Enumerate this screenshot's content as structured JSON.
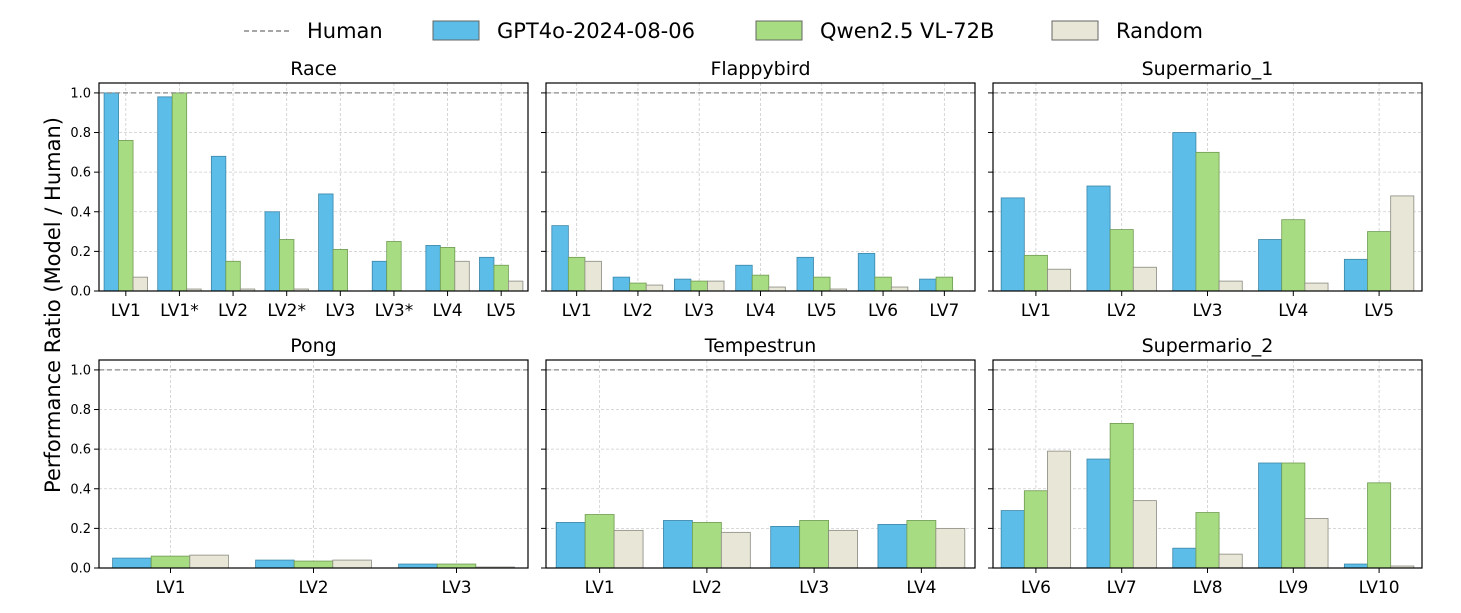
{
  "legend": [
    {
      "name": "Human",
      "kind": "line",
      "color": "#888888"
    },
    {
      "name": "GPT4o-2024-08-06",
      "kind": "bar",
      "color": "#5bbde8"
    },
    {
      "name": "Qwen2.5 VL-72B",
      "kind": "bar",
      "color": "#a8dc82"
    },
    {
      "name": "Random",
      "kind": "bar",
      "color": "#e8e6d6"
    }
  ],
  "ylabel": "Performance Ratio (Model / Human)",
  "chart_data": [
    {
      "type": "bar",
      "title": "Race",
      "categories": [
        "LV1",
        "LV1*",
        "LV2",
        "LV2*",
        "LV3",
        "LV3*",
        "LV4",
        "LV5"
      ],
      "series": [
        {
          "name": "GPT4o-2024-08-06",
          "values": [
            1.0,
            0.98,
            0.68,
            0.4,
            0.49,
            0.15,
            0.23,
            0.17
          ]
        },
        {
          "name": "Qwen2.5 VL-72B",
          "values": [
            0.76,
            1.0,
            0.15,
            0.26,
            0.21,
            0.25,
            0.22,
            0.13
          ]
        },
        {
          "name": "Random",
          "values": [
            0.07,
            0.01,
            0.01,
            0.01,
            0.0,
            0.0,
            0.15,
            0.05
          ]
        }
      ],
      "human_ratio": 1.0,
      "ylim": [
        0,
        1.05
      ],
      "yticks": [
        "0.0",
        "0.2",
        "0.4",
        "0.6",
        "0.8",
        "1.0"
      ],
      "show_yticks": true,
      "grid": true
    },
    {
      "type": "bar",
      "title": "Flappybird",
      "categories": [
        "LV1",
        "LV2",
        "LV3",
        "LV4",
        "LV5",
        "LV6",
        "LV7"
      ],
      "series": [
        {
          "name": "GPT4o-2024-08-06",
          "values": [
            0.33,
            0.07,
            0.06,
            0.13,
            0.17,
            0.19,
            0.06
          ]
        },
        {
          "name": "Qwen2.5 VL-72B",
          "values": [
            0.17,
            0.04,
            0.05,
            0.08,
            0.07,
            0.07,
            0.07
          ]
        },
        {
          "name": "Random",
          "values": [
            0.15,
            0.03,
            0.05,
            0.02,
            0.01,
            0.02,
            0.0
          ]
        }
      ],
      "human_ratio": 1.0,
      "ylim": [
        0,
        1.05
      ],
      "yticks": [
        "0.0",
        "0.2",
        "0.4",
        "0.6",
        "0.8",
        "1.0"
      ],
      "show_yticks": false,
      "grid": true
    },
    {
      "type": "bar",
      "title": "Supermario_1",
      "categories": [
        "LV1",
        "LV2",
        "LV3",
        "LV4",
        "LV5"
      ],
      "series": [
        {
          "name": "GPT4o-2024-08-06",
          "values": [
            0.47,
            0.53,
            0.8,
            0.26,
            0.16
          ]
        },
        {
          "name": "Qwen2.5 VL-72B",
          "values": [
            0.18,
            0.31,
            0.7,
            0.36,
            0.3
          ]
        },
        {
          "name": "Random",
          "values": [
            0.11,
            0.12,
            0.05,
            0.04,
            0.48
          ]
        }
      ],
      "human_ratio": 1.0,
      "ylim": [
        0,
        1.05
      ],
      "yticks": [
        "0.0",
        "0.2",
        "0.4",
        "0.6",
        "0.8",
        "1.0"
      ],
      "show_yticks": false,
      "grid": true
    },
    {
      "type": "bar",
      "title": "Pong",
      "categories": [
        "LV1",
        "LV2",
        "LV3"
      ],
      "series": [
        {
          "name": "GPT4o-2024-08-06",
          "values": [
            0.05,
            0.04,
            0.02
          ]
        },
        {
          "name": "Qwen2.5 VL-72B",
          "values": [
            0.06,
            0.035,
            0.02
          ]
        },
        {
          "name": "Random",
          "values": [
            0.065,
            0.04,
            0.005
          ]
        }
      ],
      "human_ratio": 1.0,
      "ylim": [
        0,
        1.05
      ],
      "yticks": [
        "0.0",
        "0.2",
        "0.4",
        "0.6",
        "0.8",
        "1.0"
      ],
      "show_yticks": true,
      "grid": true
    },
    {
      "type": "bar",
      "title": "Tempestrun",
      "categories": [
        "LV1",
        "LV2",
        "LV3",
        "LV4"
      ],
      "series": [
        {
          "name": "GPT4o-2024-08-06",
          "values": [
            0.23,
            0.24,
            0.21,
            0.22
          ]
        },
        {
          "name": "Qwen2.5 VL-72B",
          "values": [
            0.27,
            0.23,
            0.24,
            0.24
          ]
        },
        {
          "name": "Random",
          "values": [
            0.19,
            0.18,
            0.19,
            0.2
          ]
        }
      ],
      "human_ratio": 1.0,
      "ylim": [
        0,
        1.05
      ],
      "yticks": [
        "0.0",
        "0.2",
        "0.4",
        "0.6",
        "0.8",
        "1.0"
      ],
      "show_yticks": false,
      "grid": true
    },
    {
      "type": "bar",
      "title": "Supermario_2",
      "categories": [
        "LV6",
        "LV7",
        "LV8",
        "LV9",
        "LV10"
      ],
      "series": [
        {
          "name": "GPT4o-2024-08-06",
          "values": [
            0.29,
            0.55,
            0.1,
            0.53,
            0.02
          ]
        },
        {
          "name": "Qwen2.5 VL-72B",
          "values": [
            0.39,
            0.73,
            0.28,
            0.53,
            0.43
          ]
        },
        {
          "name": "Random",
          "values": [
            0.59,
            0.34,
            0.07,
            0.25,
            0.01
          ]
        }
      ],
      "human_ratio": 1.0,
      "ylim": [
        0,
        1.05
      ],
      "yticks": [
        "0.0",
        "0.2",
        "0.4",
        "0.6",
        "0.8",
        "1.0"
      ],
      "show_yticks": false,
      "grid": true
    }
  ]
}
